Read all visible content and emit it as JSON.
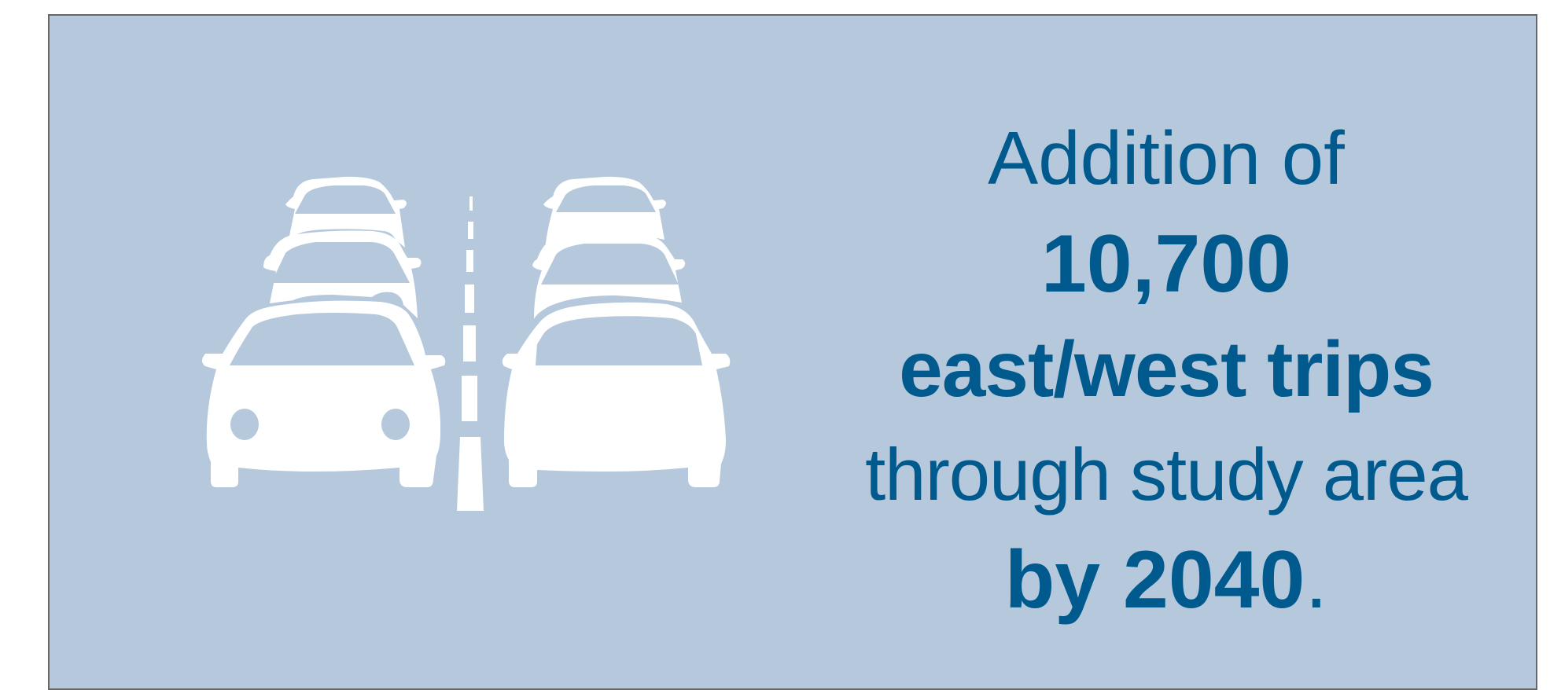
{
  "colors": {
    "background": "#b5c8dc",
    "text": "#005a8e",
    "icon": "#ffffff",
    "border": "#666666"
  },
  "illustration": {
    "icon": "two-lanes-of-traffic-cars-icon"
  },
  "callout": {
    "line1": "Addition of",
    "line2": "10,700",
    "line3": "east/west trips",
    "line4": "through study area",
    "line5_bold": "by 2040",
    "line5_end": "."
  }
}
